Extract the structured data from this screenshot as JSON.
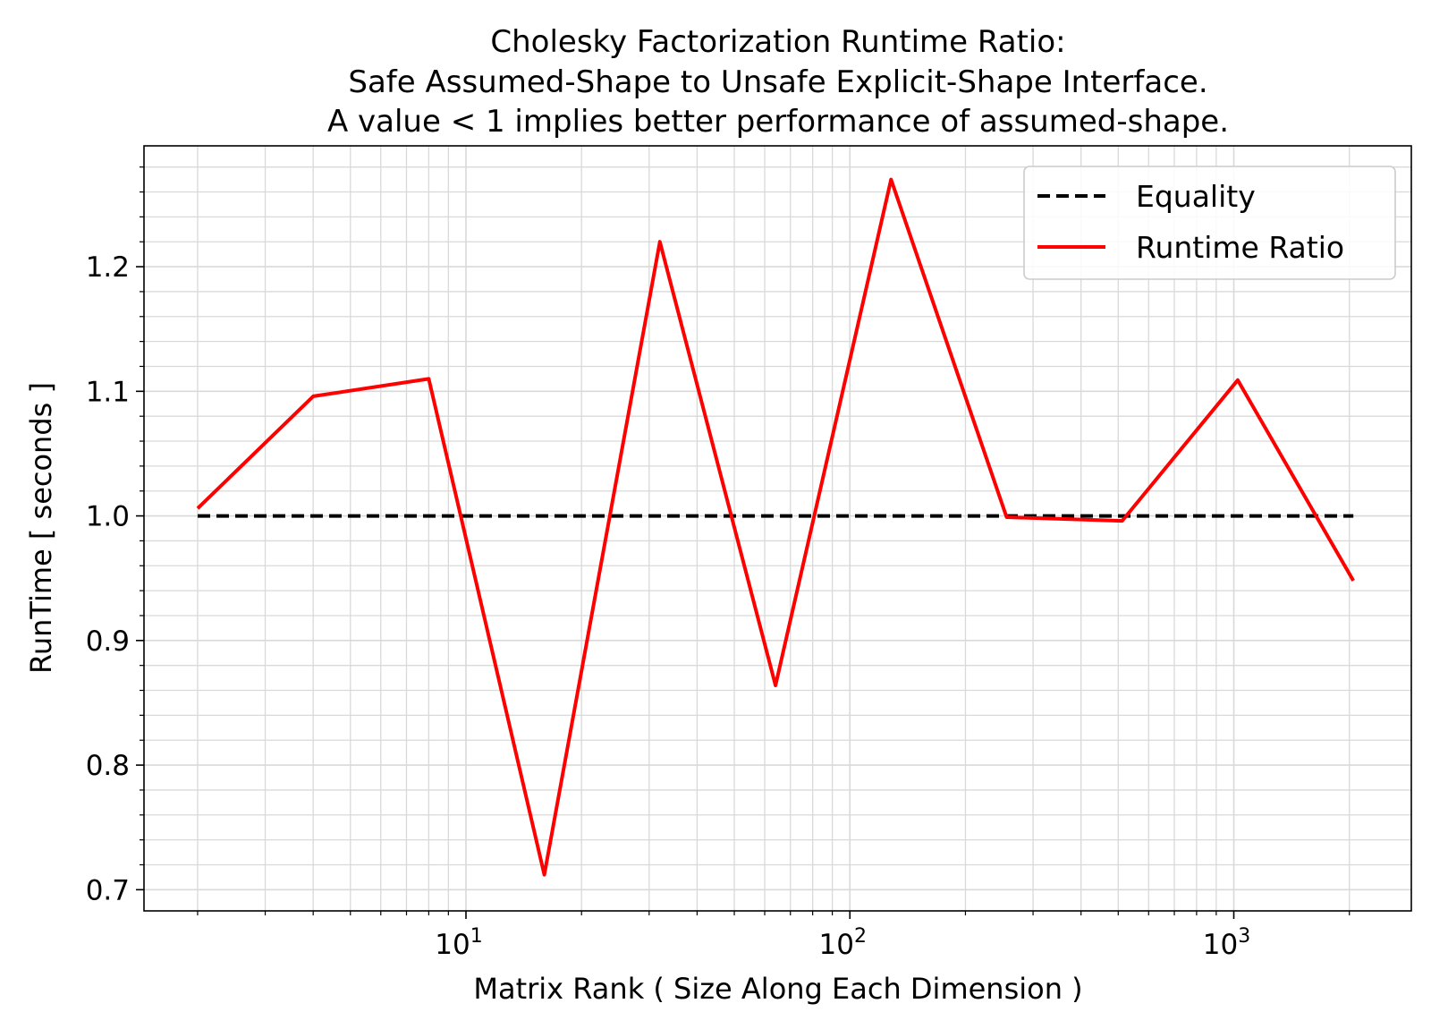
{
  "chart_data": {
    "type": "line",
    "title_lines": [
      "Cholesky Factorization Runtime Ratio:",
      "Safe Assumed-Shape to Unsafe Explicit-Shape Interface.",
      "A value < 1 implies better performance of assumed-shape."
    ],
    "xlabel": "Matrix Rank ( Size Along Each Dimension )",
    "ylabel": "RunTime [ seconds ]",
    "x_scale": "log",
    "xlim": [
      1.45,
      2900
    ],
    "ylim": [
      0.683,
      1.297
    ],
    "x_ticks": [
      {
        "value": 10,
        "base": "10",
        "exp": "1"
      },
      {
        "value": 100,
        "base": "10",
        "exp": "2"
      },
      {
        "value": 1000,
        "base": "10",
        "exp": "3"
      }
    ],
    "y_ticks": [
      {
        "value": 0.7,
        "label": "0.7"
      },
      {
        "value": 0.8,
        "label": "0.8"
      },
      {
        "value": 0.9,
        "label": "0.9"
      },
      {
        "value": 1.0,
        "label": "1.0"
      },
      {
        "value": 1.1,
        "label": "1.1"
      },
      {
        "value": 1.2,
        "label": "1.2"
      }
    ],
    "grid": true,
    "legend_position": "top-right",
    "series": [
      {
        "name": "Equality",
        "color": "#000000",
        "style": "dashed",
        "x": [
          2,
          4,
          8,
          16,
          32,
          64,
          128,
          256,
          512,
          1024,
          2048
        ],
        "y": [
          1.0,
          1.0,
          1.0,
          1.0,
          1.0,
          1.0,
          1.0,
          1.0,
          1.0,
          1.0,
          1.0
        ]
      },
      {
        "name": "Runtime Ratio",
        "color": "#ff0000",
        "style": "solid",
        "x": [
          2,
          4,
          8,
          16,
          32,
          64,
          128,
          256,
          512,
          1024,
          2048
        ],
        "y": [
          1.006,
          1.096,
          1.11,
          0.712,
          1.22,
          0.864,
          1.27,
          0.999,
          0.996,
          1.109,
          0.948
        ]
      }
    ]
  }
}
